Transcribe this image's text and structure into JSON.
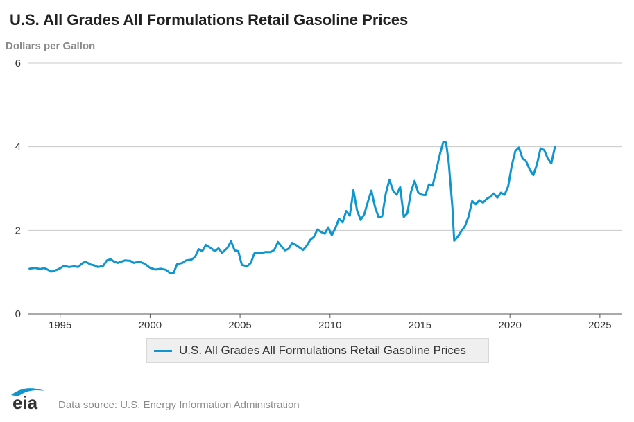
{
  "chart_data": {
    "type": "line",
    "title": "U.S. All Grades All Formulations Retail Gasoline Prices",
    "ylabel": "Dollars per Gallon",
    "xlabel": "",
    "ylim": [
      0,
      6
    ],
    "xlim": [
      1993.2,
      2026.2
    ],
    "yticks": [
      0,
      2,
      4,
      6
    ],
    "xticks": [
      1995,
      2000,
      2005,
      2010,
      2015,
      2020,
      2025
    ],
    "grid": "horizontal",
    "legend_position": "bottom-center",
    "series": [
      {
        "name": "U.S. All Grades All Formulations Retail Gasoline Prices",
        "color": "#0f96cf",
        "points": [
          [
            1993.3,
            1.08
          ],
          [
            1993.6,
            1.1
          ],
          [
            1993.9,
            1.07
          ],
          [
            1994.1,
            1.1
          ],
          [
            1994.3,
            1.06
          ],
          [
            1994.5,
            1.01
          ],
          [
            1994.8,
            1.05
          ],
          [
            1995.0,
            1.09
          ],
          [
            1995.2,
            1.15
          ],
          [
            1995.5,
            1.12
          ],
          [
            1995.8,
            1.14
          ],
          [
            1996.0,
            1.12
          ],
          [
            1996.2,
            1.2
          ],
          [
            1996.4,
            1.25
          ],
          [
            1996.7,
            1.18
          ],
          [
            1996.9,
            1.16
          ],
          [
            1997.1,
            1.12
          ],
          [
            1997.4,
            1.15
          ],
          [
            1997.6,
            1.28
          ],
          [
            1997.8,
            1.31
          ],
          [
            1998.0,
            1.25
          ],
          [
            1998.2,
            1.22
          ],
          [
            1998.6,
            1.28
          ],
          [
            1998.9,
            1.27
          ],
          [
            1999.1,
            1.22
          ],
          [
            1999.4,
            1.25
          ],
          [
            1999.7,
            1.2
          ],
          [
            2000.0,
            1.1
          ],
          [
            2000.3,
            1.06
          ],
          [
            2000.6,
            1.08
          ],
          [
            2000.9,
            1.05
          ],
          [
            2001.1,
            0.98
          ],
          [
            2001.3,
            0.97
          ],
          [
            2001.5,
            1.19
          ],
          [
            2001.8,
            1.22
          ],
          [
            2002.0,
            1.28
          ],
          [
            2002.3,
            1.3
          ],
          [
            2002.5,
            1.36
          ],
          [
            2002.7,
            1.55
          ],
          [
            2002.9,
            1.5
          ],
          [
            2003.1,
            1.65
          ],
          [
            2003.4,
            1.57
          ],
          [
            2003.6,
            1.5
          ],
          [
            2003.8,
            1.57
          ],
          [
            2004.0,
            1.46
          ],
          [
            2004.3,
            1.58
          ],
          [
            2004.5,
            1.74
          ],
          [
            2004.7,
            1.52
          ],
          [
            2004.9,
            1.5
          ],
          [
            2005.1,
            1.17
          ],
          [
            2005.4,
            1.14
          ],
          [
            2005.6,
            1.22
          ],
          [
            2005.8,
            1.45
          ],
          [
            2006.1,
            1.45
          ],
          [
            2006.4,
            1.48
          ],
          [
            2006.7,
            1.48
          ],
          [
            2006.9,
            1.53
          ],
          [
            2007.1,
            1.72
          ],
          [
            2007.3,
            1.62
          ],
          [
            2007.5,
            1.52
          ],
          [
            2007.7,
            1.56
          ],
          [
            2007.9,
            1.7
          ],
          [
            2008.1,
            1.65
          ],
          [
            2008.3,
            1.59
          ],
          [
            2008.5,
            1.53
          ],
          [
            2008.7,
            1.63
          ],
          [
            2008.9,
            1.77
          ],
          [
            2009.1,
            1.84
          ],
          [
            2009.3,
            2.02
          ],
          [
            2009.5,
            1.96
          ],
          [
            2009.7,
            1.92
          ],
          [
            2009.9,
            2.07
          ],
          [
            2010.1,
            1.88
          ],
          [
            2010.3,
            2.06
          ],
          [
            2010.5,
            2.28
          ],
          [
            2010.7,
            2.19
          ],
          [
            2010.9,
            2.46
          ],
          [
            2011.1,
            2.35
          ],
          [
            2011.3,
            2.96
          ],
          [
            2011.5,
            2.48
          ],
          [
            2011.7,
            2.25
          ],
          [
            2011.9,
            2.38
          ],
          [
            2012.1,
            2.68
          ],
          [
            2012.3,
            2.95
          ],
          [
            2012.5,
            2.56
          ],
          [
            2012.7,
            2.31
          ],
          [
            2012.9,
            2.34
          ],
          [
            2013.1,
            2.88
          ],
          [
            2013.3,
            3.21
          ],
          [
            2013.5,
            2.95
          ],
          [
            2013.7,
            2.85
          ],
          [
            2013.9,
            3.03
          ],
          [
            2014.1,
            2.32
          ],
          [
            2014.3,
            2.41
          ],
          [
            2014.5,
            2.92
          ],
          [
            2014.7,
            3.18
          ],
          [
            2014.9,
            2.9
          ],
          [
            2015.1,
            2.85
          ],
          [
            2015.3,
            2.84
          ],
          [
            2015.5,
            3.1
          ],
          [
            2015.7,
            3.07
          ],
          [
            2015.9,
            3.42
          ],
          [
            2016.1,
            3.81
          ],
          [
            2016.3,
            4.12
          ],
          [
            2016.45,
            4.1
          ],
          [
            2016.6,
            3.6
          ],
          [
            2016.8,
            2.55
          ],
          [
            2016.9,
            1.75
          ],
          [
            2017.1,
            1.85
          ],
          [
            2017.3,
            1.98
          ],
          [
            2017.5,
            2.1
          ],
          [
            2017.7,
            2.33
          ],
          [
            2017.9,
            2.7
          ],
          [
            2018.1,
            2.62
          ],
          [
            2018.3,
            2.72
          ],
          [
            2018.5,
            2.66
          ],
          [
            2018.7,
            2.75
          ],
          [
            2018.9,
            2.8
          ],
          [
            2019.1,
            2.88
          ],
          [
            2019.3,
            2.78
          ],
          [
            2019.5,
            2.9
          ],
          [
            2019.7,
            2.85
          ],
          [
            2019.9,
            3.05
          ],
          [
            2020.1,
            3.55
          ],
          [
            2020.3,
            3.9
          ],
          [
            2020.5,
            3.98
          ],
          [
            2020.7,
            3.72
          ],
          [
            2020.9,
            3.65
          ],
          [
            2021.1,
            3.45
          ],
          [
            2021.3,
            3.32
          ],
          [
            2021.5,
            3.58
          ],
          [
            2021.7,
            3.96
          ],
          [
            2021.9,
            3.92
          ],
          [
            2022.1,
            3.72
          ],
          [
            2022.3,
            3.6
          ],
          [
            2022.5,
            4.0
          ]
        ]
      }
    ],
    "source_label": "Data source: U.S. Energy Information Administration",
    "logo_text": "eia"
  }
}
